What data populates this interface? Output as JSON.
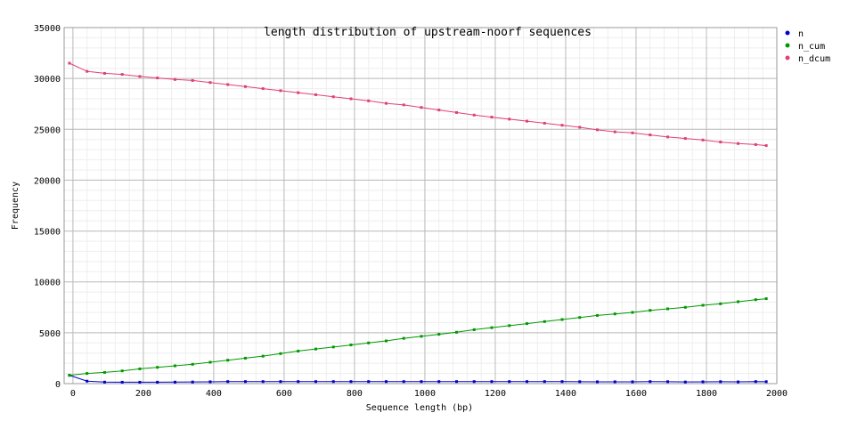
{
  "chart_data": {
    "type": "line",
    "title": "length distribution of upstream-noorf sequences",
    "xlabel": "Sequence length (bp)",
    "ylabel": "Frequency",
    "xlim": [
      -25,
      2000
    ],
    "ylim": [
      0,
      35000
    ],
    "xticks": [
      0,
      200,
      400,
      600,
      800,
      1000,
      1200,
      1400,
      1600,
      1800,
      2000
    ],
    "yticks": [
      0,
      5000,
      10000,
      15000,
      20000,
      25000,
      30000,
      35000
    ],
    "grid": true,
    "legend_position": "top-right",
    "x": [
      -10,
      40,
      90,
      140,
      190,
      240,
      290,
      340,
      390,
      440,
      490,
      540,
      590,
      640,
      690,
      740,
      790,
      840,
      890,
      940,
      990,
      1040,
      1090,
      1140,
      1190,
      1240,
      1290,
      1340,
      1390,
      1440,
      1490,
      1540,
      1590,
      1640,
      1690,
      1740,
      1790,
      1840,
      1890,
      1940,
      1970
    ],
    "series": [
      {
        "name": "n",
        "color": "#0000cc",
        "values": [
          820,
          240,
          150,
          140,
          140,
          140,
          150,
          160,
          180,
          200,
          200,
          200,
          200,
          200,
          200,
          200,
          200,
          200,
          200,
          200,
          200,
          200,
          200,
          200,
          200,
          200,
          200,
          200,
          200,
          190,
          180,
          180,
          180,
          200,
          190,
          160,
          180,
          190,
          170,
          200,
          190
        ]
      },
      {
        "name": "n_cum",
        "color": "#009900",
        "values": [
          820,
          1000,
          1100,
          1250,
          1450,
          1600,
          1750,
          1900,
          2100,
          2300,
          2500,
          2700,
          2950,
          3200,
          3400,
          3600,
          3800,
          4000,
          4200,
          4450,
          4650,
          4850,
          5050,
          5300,
          5500,
          5700,
          5900,
          6100,
          6300,
          6500,
          6700,
          6850,
          7000,
          7200,
          7350,
          7500,
          7700,
          7850,
          8050,
          8250,
          8350
        ]
      },
      {
        "name": "n_dcum",
        "color": "#e0407a",
        "values": [
          31500,
          30700,
          30500,
          30400,
          30200,
          30050,
          29900,
          29800,
          29600,
          29400,
          29200,
          29000,
          28800,
          28600,
          28400,
          28200,
          28000,
          27800,
          27550,
          27400,
          27150,
          26900,
          26650,
          26400,
          26200,
          26000,
          25800,
          25600,
          25400,
          25200,
          24950,
          24750,
          24650,
          24450,
          24250,
          24100,
          23950,
          23750,
          23600,
          23500,
          23400
        ]
      }
    ]
  }
}
